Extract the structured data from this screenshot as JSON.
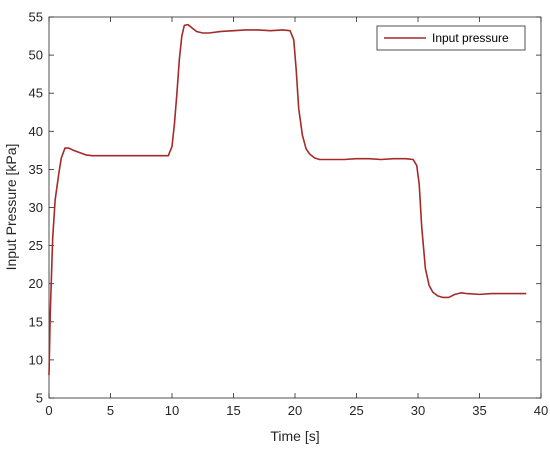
{
  "chart_data": {
    "type": "line",
    "title": "",
    "xlabel": "Time [s]",
    "ylabel": "Input Pressure [kPa]",
    "xlim": [
      0,
      40
    ],
    "ylim": [
      5,
      55
    ],
    "xticks": [
      "0",
      "5",
      "10",
      "15",
      "20",
      "25",
      "30",
      "35",
      "40"
    ],
    "yticks": [
      "5",
      "10",
      "15",
      "20",
      "25",
      "30",
      "35",
      "40",
      "45",
      "50",
      "55"
    ],
    "grid": false,
    "legend_position": "top-right",
    "series": [
      {
        "name": "Input pressure",
        "color": "#a52a2a",
        "x": [
          0,
          0.1,
          0.3,
          0.5,
          0.8,
          1.0,
          1.3,
          1.6,
          2.0,
          2.5,
          3.0,
          3.5,
          4.0,
          5.0,
          6.0,
          7.0,
          8.0,
          9.0,
          9.7,
          10.0,
          10.2,
          10.4,
          10.6,
          10.8,
          11.0,
          11.3,
          11.6,
          12.0,
          12.5,
          13.0,
          14.0,
          15.0,
          16.0,
          17.0,
          18.0,
          19.0,
          19.6,
          19.9,
          20.1,
          20.3,
          20.6,
          20.9,
          21.2,
          21.6,
          22.0,
          23.0,
          24.0,
          25.0,
          26.0,
          27.0,
          28.0,
          29.0,
          29.6,
          29.9,
          30.1,
          30.3,
          30.6,
          30.9,
          31.2,
          31.6,
          32.0,
          32.5,
          33.0,
          33.5,
          34.0,
          35.0,
          36.0,
          37.0,
          38.0,
          38.8
        ],
        "y": [
          8.0,
          16.0,
          26.0,
          31.0,
          34.5,
          36.5,
          37.8,
          37.8,
          37.5,
          37.2,
          36.9,
          36.8,
          36.8,
          36.8,
          36.8,
          36.8,
          36.8,
          36.8,
          36.8,
          38.0,
          41.0,
          45.0,
          49.5,
          52.5,
          53.9,
          54.0,
          53.6,
          53.1,
          52.9,
          52.9,
          53.1,
          53.2,
          53.3,
          53.3,
          53.2,
          53.3,
          53.2,
          52.0,
          48.0,
          43.0,
          39.5,
          37.7,
          37.0,
          36.5,
          36.3,
          36.3,
          36.3,
          36.4,
          36.4,
          36.3,
          36.4,
          36.4,
          36.3,
          35.5,
          33.0,
          27.5,
          22.0,
          19.8,
          18.9,
          18.4,
          18.2,
          18.2,
          18.6,
          18.8,
          18.7,
          18.6,
          18.7,
          18.7,
          18.7,
          18.7
        ]
      }
    ]
  }
}
